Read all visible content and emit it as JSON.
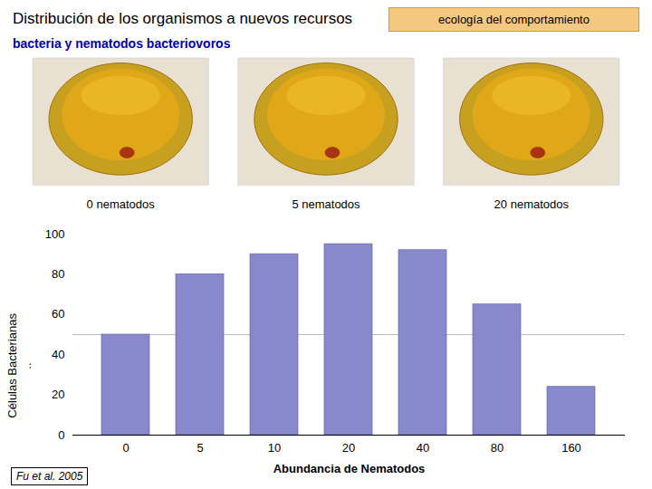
{
  "chart_data": {
    "type": "bar",
    "title": "Distribución de los organismos a nuevos recursos",
    "subtitle": "bacteria y nematodos bacteriovoros",
    "badge": "ecología del comportamiento",
    "image_labels": [
      "0 nematodos",
      "5 nematodos",
      "20 nematodos"
    ],
    "footnote": "Fu et al. 2005",
    "categories": [
      "0",
      "5",
      "10",
      "20",
      "40",
      "80",
      "160"
    ],
    "values": [
      50,
      80,
      90,
      95,
      92,
      65,
      24
    ],
    "color": "#8888cc",
    "reference_line": {
      "value": 50,
      "color": "#bbbbbb"
    },
    "xlabel": "Abundancia de Nematodos",
    "ylabel": "Células Bacterianas\n..",
    "ylim": [
      0,
      100
    ],
    "yticks": [
      0,
      20,
      40,
      60,
      80,
      100
    ],
    "grid": false
  }
}
